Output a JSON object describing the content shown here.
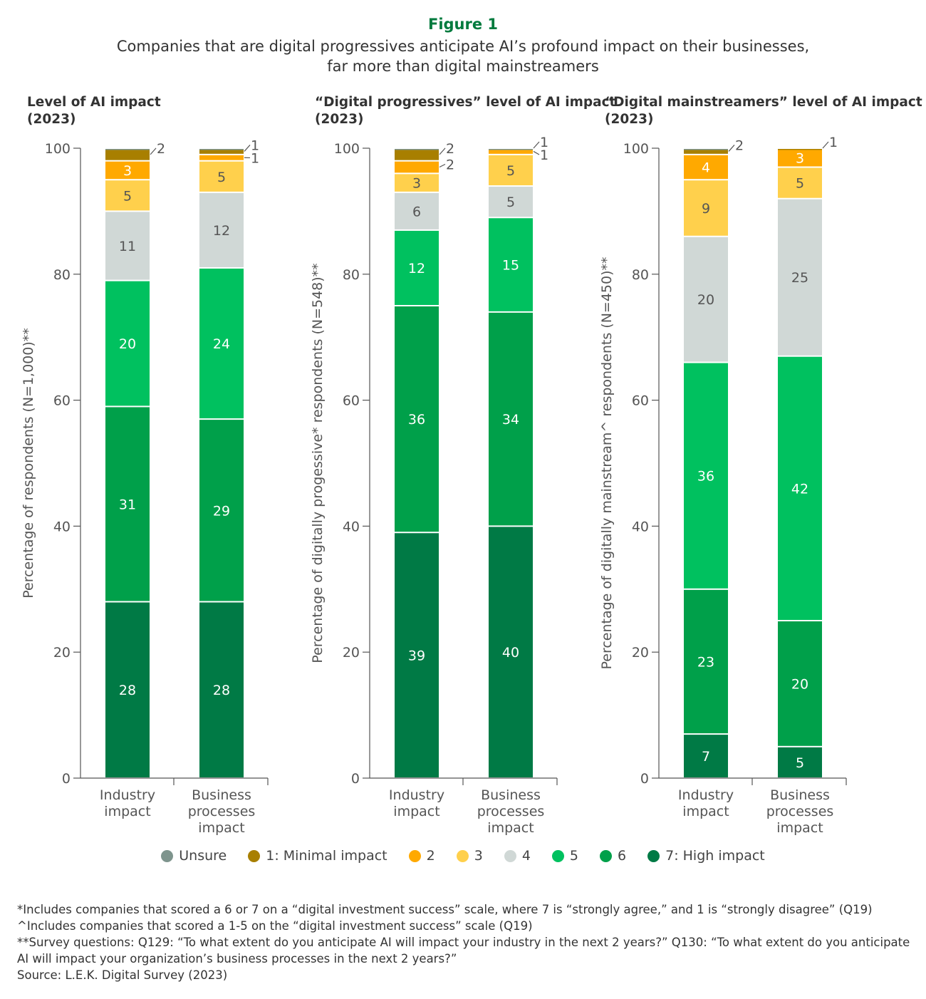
{
  "figure_label": "Figure 1",
  "subtitle_line1": "Companies that are digital progressives anticipate AI’s profound impact on their businesses,",
  "subtitle_line2": "far more than digital mainstreamers",
  "colors": {
    "unsure": "#7E948D",
    "1": "#A87F00",
    "2": "#FFA900",
    "3": "#FFD04C",
    "4": "#D0D8D6",
    "5": "#00C15F",
    "6": "#00A04A",
    "7": "#007A45",
    "title": "#007A3D"
  },
  "legend": [
    {
      "key": "unsure",
      "label": "Unsure"
    },
    {
      "key": "1",
      "label": "1: Minimal impact"
    },
    {
      "key": "2",
      "label": "2"
    },
    {
      "key": "3",
      "label": "3"
    },
    {
      "key": "4",
      "label": "4"
    },
    {
      "key": "5",
      "label": "5"
    },
    {
      "key": "6",
      "label": "6"
    },
    {
      "key": "7",
      "label": "7: High impact"
    }
  ],
  "chart_data": [
    {
      "type": "bar",
      "stacked": true,
      "title_line1": "Level of AI impact",
      "title_line2": "(2023)",
      "ylabel": "Percentage of respondents (N=1,000)**",
      "ylim": [
        0,
        100
      ],
      "yticks": [
        "0",
        "20",
        "40",
        "60",
        "80",
        "100"
      ],
      "categories": [
        [
          "Industry",
          "impact"
        ],
        [
          "Business",
          "processes",
          "impact"
        ]
      ],
      "series": [
        {
          "name": "7",
          "values": [
            28,
            28
          ]
        },
        {
          "name": "6",
          "values": [
            31,
            29
          ]
        },
        {
          "name": "5",
          "values": [
            20,
            24
          ]
        },
        {
          "name": "4",
          "values": [
            11,
            12
          ]
        },
        {
          "name": "3",
          "values": [
            5,
            5
          ]
        },
        {
          "name": "2",
          "values": [
            3,
            1
          ]
        },
        {
          "name": "1",
          "values": [
            2,
            1
          ]
        },
        {
          "name": "unsure",
          "values": [
            0.4,
            0.4
          ]
        }
      ]
    },
    {
      "type": "bar",
      "stacked": true,
      "title_line1": "“Digital progressives” level of AI impact",
      "title_line2": "(2023)",
      "ylabel": "Percentage of digitally progessive* respondents (N=548)**",
      "ylim": [
        0,
        100
      ],
      "yticks": [
        "0",
        "20",
        "40",
        "60",
        "80",
        "100"
      ],
      "categories": [
        [
          "Industry",
          "impact"
        ],
        [
          "Business",
          "processes",
          "impact"
        ]
      ],
      "series": [
        {
          "name": "7",
          "values": [
            39,
            40
          ]
        },
        {
          "name": "6",
          "values": [
            36,
            34
          ]
        },
        {
          "name": "5",
          "values": [
            12,
            15
          ]
        },
        {
          "name": "4",
          "values": [
            6,
            5
          ]
        },
        {
          "name": "3",
          "values": [
            3,
            5
          ]
        },
        {
          "name": "2",
          "values": [
            2,
            1
          ]
        },
        {
          "name": "1",
          "values": [
            2,
            1
          ]
        },
        {
          "name": "unsure",
          "values": [
            0.4,
            0.4
          ]
        }
      ]
    },
    {
      "type": "bar",
      "stacked": true,
      "title_line1": "“Digital mainstreamers” level of AI impact",
      "title_line2": "(2023)",
      "ylabel": "Percentage of digitally mainstream^ respondents (N=450)**",
      "ylim": [
        0,
        100
      ],
      "yticks": [
        "0",
        "20",
        "40",
        "60",
        "80",
        "100"
      ],
      "categories": [
        [
          "Industry",
          "impact"
        ],
        [
          "Business",
          "processes",
          "impact"
        ]
      ],
      "series": [
        {
          "name": "7",
          "values": [
            7,
            5
          ]
        },
        {
          "name": "6",
          "values": [
            23,
            20
          ]
        },
        {
          "name": "5",
          "values": [
            36,
            42
          ]
        },
        {
          "name": "4",
          "values": [
            20,
            25
          ]
        },
        {
          "name": "3",
          "values": [
            9,
            5
          ]
        },
        {
          "name": "2",
          "values": [
            4,
            3
          ]
        },
        {
          "name": "1",
          "values": [
            2,
            1
          ]
        },
        {
          "name": "unsure",
          "values": [
            0.4,
            0
          ]
        }
      ]
    }
  ],
  "notes": [
    "*Includes companies that scored a 6 or 7 on a “digital investment success” scale, where 7 is “strongly agree,” and 1 is “strongly disagree” (Q19)",
    "^Includes companies that scored a 1-5 on the “digital investment success” scale (Q19)",
    "**Survey questions: Q129: “To what extent do you anticipate AI will impact your industry in the next 2 years?” Q130: “To what extent do you anticipate AI will impact your organization’s business processes in the next 2 years?”",
    "Source: L.E.K. Digital Survey (2023)"
  ]
}
